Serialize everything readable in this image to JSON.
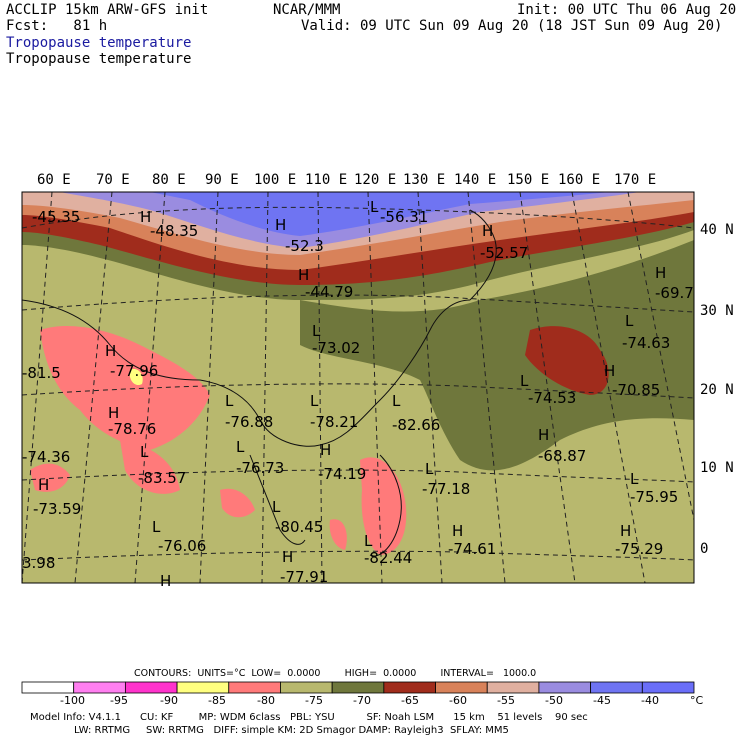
{
  "header": {
    "model": "ACCLIP 15km ARW-GFS init",
    "fcst": "Fcst:   81 h",
    "org": "NCAR/MMM",
    "init": "Init: 00 UTC Thu 06 Aug 20",
    "valid": "Valid: 09 UTC Sun 09 Aug 20 (18 JST Sun 09 Aug 20)",
    "title_blue": "Tropopause temperature",
    "title_black": "Tropopause temperature"
  },
  "map": {
    "lon_labels": [
      "60 E",
      "70 E",
      "80 E",
      "90 E",
      "100 E",
      "110 E",
      "120 E",
      "130 E",
      "140 E",
      "150 E",
      "160 E",
      "170 E"
    ],
    "lat_labels": [
      "40 N",
      "30 N",
      "20 N",
      "10 N",
      "0"
    ],
    "extrema": [
      {
        "label": "-45.35",
        "hl": ""
      },
      {
        "label": "-48.35",
        "hl": "H"
      },
      {
        "label": "-52.3",
        "hl": "H"
      },
      {
        "label": "-56.31",
        "hl": "L"
      },
      {
        "label": "-52.57",
        "hl": "H"
      },
      {
        "label": "-44.79",
        "hl": "H"
      },
      {
        "label": "-69.7",
        "hl": "H"
      },
      {
        "label": "-73.02",
        "hl": "L"
      },
      {
        "label": "-74.63",
        "hl": "L"
      },
      {
        "label": "-77.96",
        "hl": "H"
      },
      {
        "label": "-81.5",
        "hl": ""
      },
      {
        "label": "-74.53",
        "hl": "L"
      },
      {
        "label": "-70.85",
        "hl": "H"
      },
      {
        "label": "-78.76",
        "hl": "H"
      },
      {
        "label": "-76.88",
        "hl": "L"
      },
      {
        "label": "-78.21",
        "hl": "L"
      },
      {
        "label": "-82.66",
        "hl": "L"
      },
      {
        "label": "-68.87",
        "hl": "H"
      },
      {
        "label": "-74.36",
        "hl": ""
      },
      {
        "label": "-83.57",
        "hl": "L"
      },
      {
        "label": "-76.73",
        "hl": "L"
      },
      {
        "label": "-74.19",
        "hl": "H"
      },
      {
        "label": "-77.18",
        "hl": "L"
      },
      {
        "label": "-75.95",
        "hl": "L"
      },
      {
        "label": "-73.59",
        "hl": "H"
      },
      {
        "label": "-80.45",
        "hl": "L"
      },
      {
        "label": "-74.61",
        "hl": "H"
      },
      {
        "label": "-75.29",
        "hl": "H"
      },
      {
        "label": "-76.06",
        "hl": "L"
      },
      {
        "label": "-82.44",
        "hl": "L"
      },
      {
        "label": "-77.91",
        "hl": "H"
      },
      {
        "label": "3.98",
        "hl": ""
      },
      {
        "label": "",
        "hl": "H"
      }
    ]
  },
  "contours": {
    "line": "CONTOURS:  UNITS=°C  LOW=  0.0000        HIGH=  0.0000        INTERVAL=   1000.0"
  },
  "legend": {
    "ticks": [
      "-100",
      "-95",
      "-90",
      "-85",
      "-80",
      "-75",
      "-70",
      "-65",
      "-60",
      "-55",
      "-50",
      "-45",
      "-40"
    ],
    "unit": "°C",
    "colors": [
      "#ffffff",
      "#ff7ff0",
      "#ff33cc",
      "#ffff80",
      "#ff7a7a",
      "#b8b86e",
      "#6f773c",
      "#a02c1c",
      "#d8825a",
      "#e0b0a0",
      "#9a8ce0",
      "#6f74f2",
      "#6a6ef8"
    ]
  },
  "info": {
    "line1": "Model Info: V4.1.1      CU: KF        MP: WDM 6class   PBL: YSU          SF: Noah LSM      15 km    51 levels    90 sec",
    "line2": "LW: RRTMG     SW: RRTMG   DIFF: simple KM: 2D Smagor DAMP: Rayleigh3  SFLAY: MM5"
  }
}
